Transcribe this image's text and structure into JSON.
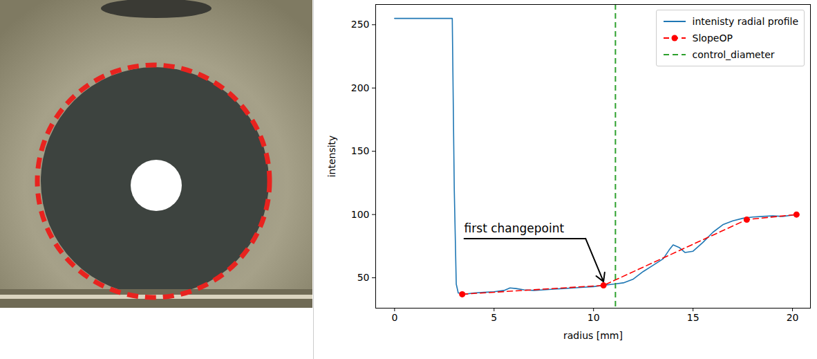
{
  "chart_data": {
    "type": "line",
    "x_label": "radius [mm]",
    "y_label": "intensity",
    "xlim": [
      -0.95,
      20.9
    ],
    "ylim": [
      26,
      266
    ],
    "xticks": [
      0,
      5,
      10,
      15,
      20
    ],
    "yticks": [
      50,
      100,
      150,
      200,
      250
    ],
    "grid": false,
    "legend": "upper right",
    "series": [
      {
        "name": "intenisty radial profile",
        "color": "#1f77b4",
        "type": "line",
        "line_style": "solid",
        "x": [
          0,
          1,
          2,
          2.9,
          3.0,
          3.1,
          3.2,
          3.5,
          4,
          4.5,
          5,
          5.5,
          5.8,
          6.1,
          6.5,
          7,
          7.5,
          8,
          8.5,
          9,
          9.5,
          10,
          10.5,
          11,
          11.5,
          12,
          12.5,
          13,
          13.5,
          13.8,
          14,
          14.3,
          14.6,
          15,
          15.5,
          16,
          16.5,
          17,
          17.5,
          18,
          18.5,
          19,
          19.5,
          20,
          20.2
        ],
        "values": [
          255,
          255,
          255,
          255,
          120,
          45,
          38,
          37,
          38,
          38.5,
          39,
          40,
          42,
          41.5,
          40.5,
          40,
          40.5,
          41,
          41.5,
          42,
          42.5,
          43,
          44,
          45,
          46,
          49,
          55,
          60,
          65,
          72,
          76,
          74,
          70,
          71,
          78,
          86,
          92,
          95,
          97,
          98,
          98.5,
          99,
          98.5,
          99.5,
          100
        ]
      },
      {
        "name": "SlopeOP",
        "color": "#ff0000",
        "type": "line",
        "line_style": "dashed",
        "marker": "circle",
        "x": [
          3.4,
          10.5,
          17.7,
          20.2
        ],
        "values": [
          37,
          44,
          96,
          100
        ]
      },
      {
        "name": "control_diameter",
        "color": "#2ca02c",
        "type": "vline",
        "line_style": "dashed",
        "x": [
          11.1
        ]
      }
    ],
    "annotations": [
      {
        "text": "first changepoint",
        "x": 3.5,
        "y": 86,
        "arrow_from": [
          3.5,
          81
        ],
        "arrow_via": [
          9.6,
          81
        ],
        "arrow_to": [
          10.5,
          47
        ]
      }
    ]
  }
}
